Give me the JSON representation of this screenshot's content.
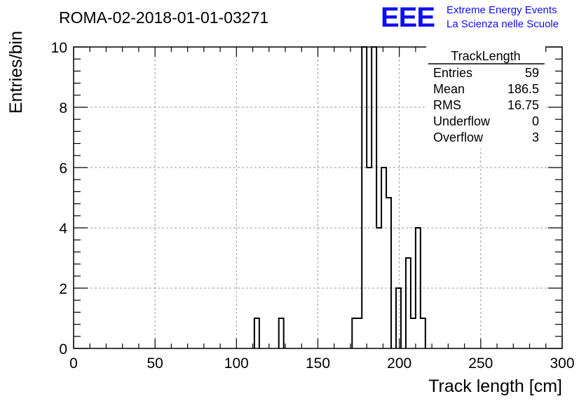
{
  "header": {
    "run_title": "ROMA-02-2018-01-01-03271",
    "logo_text": "EEE",
    "logo_line1": "Extreme Energy Events",
    "logo_line2": "La Scienza nelle Scuole",
    "logo_color": "#1010ee"
  },
  "stats_box": {
    "title": "TrackLength",
    "rows": [
      {
        "label": "Entries",
        "value": "59"
      },
      {
        "label": "Mean",
        "value": "186.5"
      },
      {
        "label": "RMS",
        "value": "16.75"
      },
      {
        "label": "Underflow",
        "value": "0"
      },
      {
        "label": "Overflow",
        "value": "3"
      }
    ]
  },
  "chart_data": {
    "type": "bar",
    "style": "step-histogram",
    "xlabel": "Track length [cm]",
    "ylabel": "Entries/bin",
    "xlim": [
      0,
      300
    ],
    "ylim": [
      0,
      10
    ],
    "bin_width": 3,
    "grid": true,
    "xticks": [
      0,
      50,
      100,
      150,
      200,
      250,
      300
    ],
    "yticks": [
      0,
      2,
      4,
      6,
      8,
      10
    ],
    "bins": [
      {
        "x0": 111,
        "x1": 114,
        "value": 1
      },
      {
        "x0": 126,
        "x1": 129,
        "value": 1
      },
      {
        "x0": 171,
        "x1": 174,
        "value": 1
      },
      {
        "x0": 174,
        "x1": 177,
        "value": 1
      },
      {
        "x0": 177,
        "x1": 180,
        "value": 10
      },
      {
        "x0": 180,
        "x1": 183,
        "value": 6
      },
      {
        "x0": 183,
        "x1": 186,
        "value": 10
      },
      {
        "x0": 186,
        "x1": 189,
        "value": 4
      },
      {
        "x0": 189,
        "x1": 192,
        "value": 6
      },
      {
        "x0": 192,
        "x1": 195,
        "value": 5
      },
      {
        "x0": 198,
        "x1": 201,
        "value": 2
      },
      {
        "x0": 204,
        "x1": 207,
        "value": 3
      },
      {
        "x0": 207,
        "x1": 210,
        "value": 1
      },
      {
        "x0": 210,
        "x1": 213,
        "value": 4
      },
      {
        "x0": 213,
        "x1": 216,
        "value": 1
      }
    ]
  }
}
